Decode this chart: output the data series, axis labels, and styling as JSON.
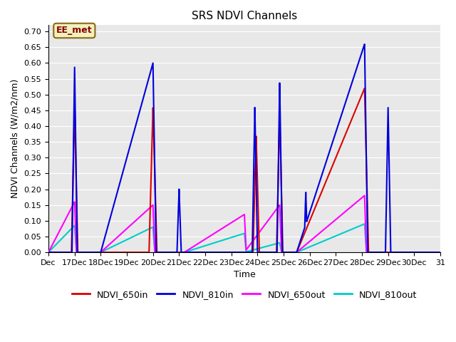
{
  "title": "SRS NDVI Channels",
  "xlabel": "Time",
  "ylabel": "NDVI Channels (W/m2/nm)",
  "ylim": [
    0.0,
    0.72
  ],
  "yticks": [
    0.0,
    0.05,
    0.1,
    0.15,
    0.2,
    0.25,
    0.3,
    0.35,
    0.4,
    0.45,
    0.5,
    0.55,
    0.6,
    0.65,
    0.7
  ],
  "background_color": "#e8e8e8",
  "annotation_text": "EE_met",
  "annotation_color": "#8b0000",
  "annotation_bg": "#f0f0c0",
  "series": {
    "NDVI_650in": {
      "color": "#dd0000",
      "lw": 1.5
    },
    "NDVI_810in": {
      "color": "#0000dd",
      "lw": 1.5
    },
    "NDVI_650out": {
      "color": "#ff00ff",
      "lw": 1.5
    },
    "NDVI_810out": {
      "color": "#00cccc",
      "lw": 1.5
    }
  },
  "xticklabels": [
    "Dec",
    "17Dec",
    "18Dec",
    "19Dec",
    "20Dec",
    "21Dec",
    "22Dec",
    "23Dec",
    "24Dec",
    "25Dec",
    "26Dec",
    "27Dec",
    "28Dec",
    "29Dec",
    "30Dec",
    "31"
  ],
  "xtick_positions": [
    0,
    1,
    2,
    3,
    4,
    5,
    6,
    7,
    8,
    9,
    10,
    11,
    12,
    13,
    14,
    15
  ]
}
